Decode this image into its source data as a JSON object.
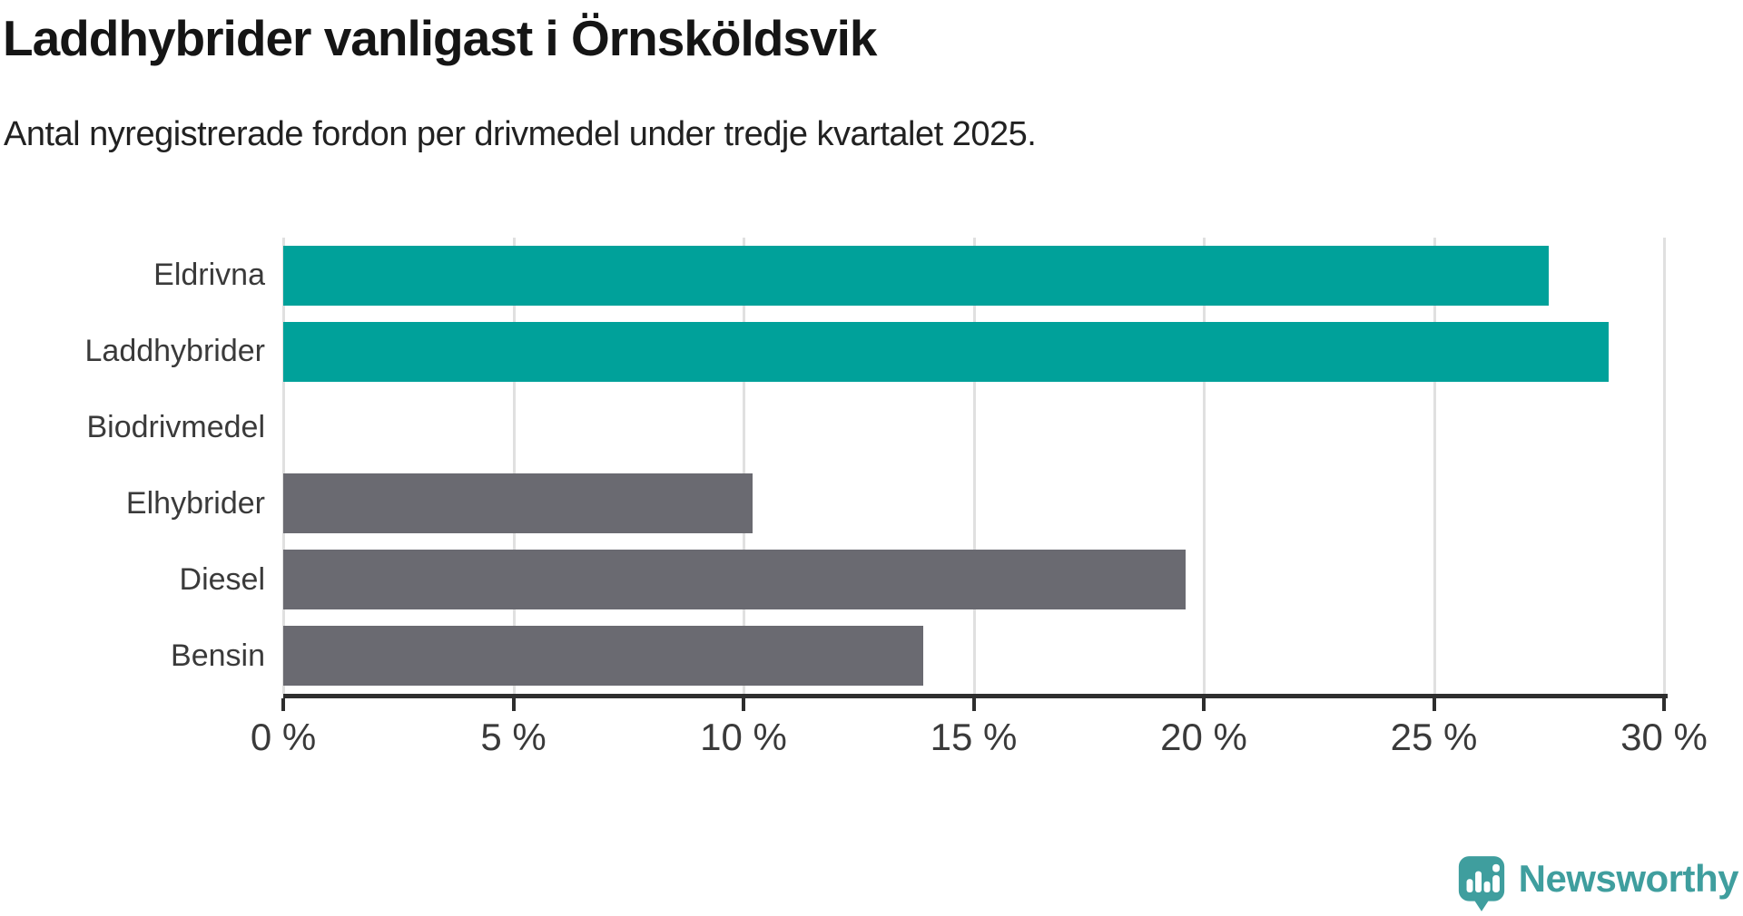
{
  "title": "Laddhybrider vanligast i Örnsköldsvik",
  "subtitle": "Antal nyregistrerade fordon per drivmedel under tredje kvartalet 2025.",
  "chart_data": {
    "type": "bar",
    "orientation": "horizontal",
    "title": "Laddhybrider vanligast i Örnsköldsvik",
    "subtitle": "Antal nyregistrerade fordon per drivmedel under tredje kvartalet 2025.",
    "categories": [
      "Eldrivna",
      "Laddhybrider",
      "Biodrivmedel",
      "Elhybrider",
      "Diesel",
      "Bensin"
    ],
    "values": [
      27.5,
      28.8,
      0,
      10.2,
      19.6,
      13.9
    ],
    "unit": "%",
    "xlim": [
      0,
      30
    ],
    "x_ticks": [
      0,
      5,
      10,
      15,
      20,
      25,
      30
    ],
    "x_tick_labels": [
      "0 %",
      "5 %",
      "10 %",
      "15 %",
      "20 %",
      "25 %",
      "30 %"
    ],
    "bar_colors": [
      "#00a19a",
      "#00a19a",
      "#6a6a71",
      "#6a6a71",
      "#6a6a71",
      "#6a6a71"
    ],
    "grid": "vertical-only",
    "legend": "none",
    "colors": {
      "highlight": "#00a19a",
      "base": "#6a6a71",
      "gridline": "#e0e0e0",
      "axis": "#2e2e2e",
      "text": "#3a3a3a"
    }
  },
  "branding": {
    "name": "Newsworthy",
    "logo_icon": "speech-bubble-bar-chart-icon",
    "color": "#3f9e9e"
  }
}
